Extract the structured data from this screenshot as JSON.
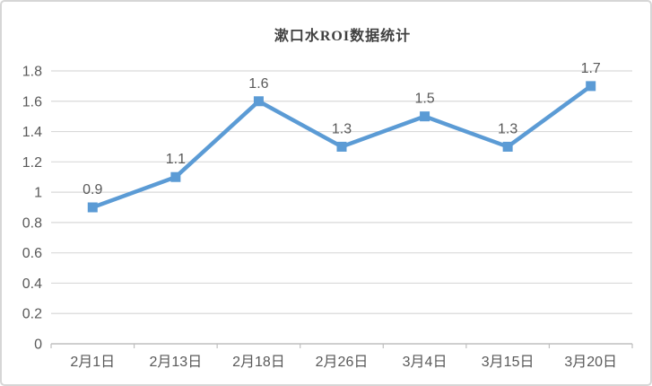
{
  "chart_data": {
    "type": "line",
    "title": "漱口水ROI数据统计",
    "categories": [
      "2月1日",
      "2月13日",
      "2月18日",
      "2月26日",
      "3月4日",
      "3月15日",
      "3月20日"
    ],
    "series": [
      {
        "name": "ROI",
        "values": [
          0.9,
          1.1,
          1.6,
          1.3,
          1.5,
          1.3,
          1.7
        ],
        "data_labels": [
          "0.9",
          "1.1",
          "1.6",
          "1.3",
          "1.5",
          "1.3",
          "1.7"
        ]
      }
    ],
    "xlabel": "",
    "ylabel": "",
    "ylim": [
      0,
      1.8
    ],
    "y_ticks": [
      "0",
      "0.2",
      "0.4",
      "0.6",
      "0.8",
      "1",
      "1.2",
      "1.4",
      "1.6",
      "1.8"
    ],
    "grid": "horizontal",
    "legend_position": "none",
    "marker_shape": "square"
  },
  "colors": {
    "line": "#5b9bd5",
    "marker": "#5b9bd5",
    "gridline": "#d9d9d9",
    "axis": "#bfbfbf",
    "tick_label": "#595959",
    "data_label": "#595959",
    "title": "#404040",
    "card_border": "#d6d6d6",
    "background": "#ffffff"
  }
}
